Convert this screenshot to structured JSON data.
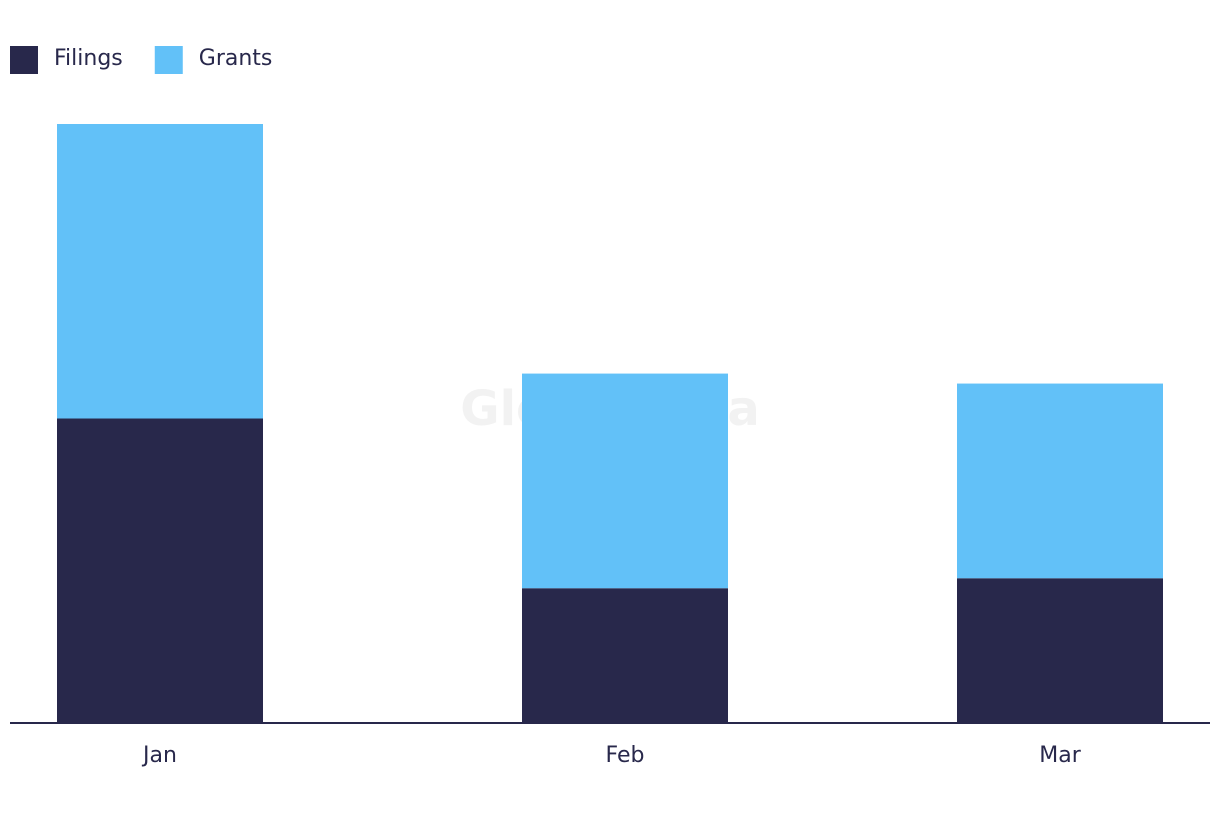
{
  "chart_data": {
    "type": "stacked_bar",
    "categories": [
      "Jan",
      "Feb",
      "Mar"
    ],
    "series": [
      {
        "name": "Filings",
        "color": "#28284b",
        "values": [
          61,
          27,
          29
        ]
      },
      {
        "name": "Grants",
        "color": "#62c1f8",
        "values": [
          59,
          43,
          39
        ]
      }
    ],
    "watermark": "GlobalData"
  }
}
